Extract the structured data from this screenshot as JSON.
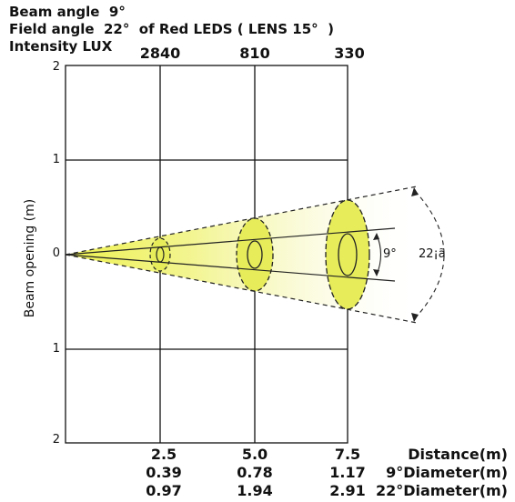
{
  "header": {
    "line1": "Beam angle  9°",
    "line2": "Field angle  22°  of Red LEDS ( LENS 15°  )",
    "line3": "Intensity LUX"
  },
  "lux_values": [
    "2840",
    "810",
    "330"
  ],
  "y_axis": {
    "label": "Beam opening (m)",
    "ticks": [
      "2",
      "1",
      "0",
      "1",
      "2"
    ]
  },
  "table": {
    "distance": [
      "2.5",
      "5.0",
      "7.5"
    ],
    "diameter_9": [
      "0.39",
      "0.78",
      "1.17"
    ],
    "diameter_22": [
      "0.97",
      "1.94",
      "2.91"
    ],
    "row_labels": {
      "distance": "Distance(m)",
      "diameter_9": "9°Diameter(m)",
      "diameter_22": "22°Diameter(m)"
    }
  },
  "annotations": {
    "beam_angle": "9°",
    "field_angle": "22¡ã"
  },
  "colors": {
    "beam_fill": "#e6ec5a",
    "gradient_start": "#eef14f",
    "gradient_end": "#ffffff"
  }
}
